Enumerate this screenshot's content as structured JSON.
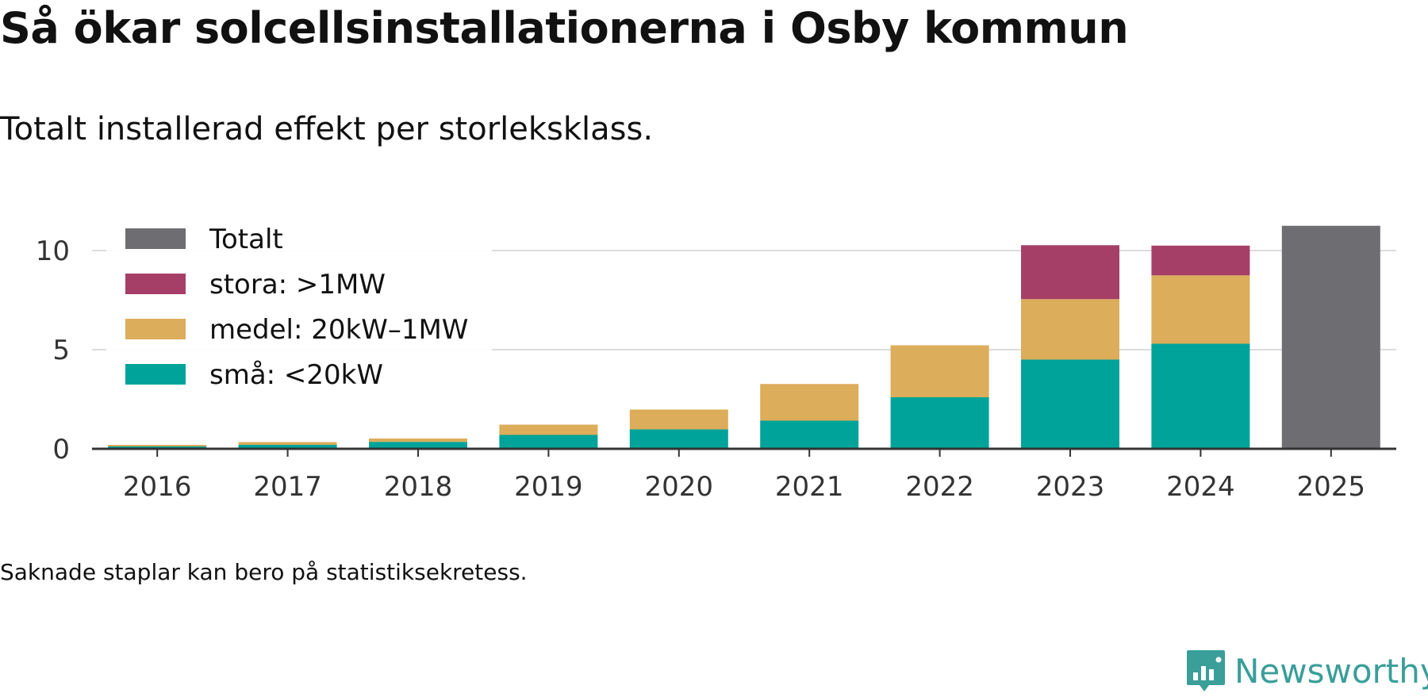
{
  "header": {
    "title": "Så ökar solcellsinstallationerna i Osby kommun",
    "subtitle": "Totalt installerad effekt per storleksklass."
  },
  "footnote": "Saknade staplar kan bero på statistiksekretess.",
  "brand": {
    "name": "Newsworthy",
    "icon": "newsworthy-logo-icon",
    "color": "#3a9e99"
  },
  "chart_data": {
    "type": "bar",
    "stacked": true,
    "categories": [
      "2016",
      "2017",
      "2018",
      "2019",
      "2020",
      "2021",
      "2022",
      "2023",
      "2024",
      "2025"
    ],
    "series": [
      {
        "name": "små: <20kW",
        "color": "#00a39a",
        "values": [
          0.12,
          0.2,
          0.35,
          0.7,
          0.98,
          1.42,
          2.6,
          4.5,
          5.3,
          null
        ]
      },
      {
        "name": "medel: 20kW–1MW",
        "color": "#dcad5a",
        "values": [
          0.08,
          0.14,
          0.17,
          0.52,
          1.0,
          1.85,
          2.62,
          3.05,
          3.45,
          null
        ]
      },
      {
        "name": "stora: >1MW",
        "color": "#a63f68",
        "values": [
          null,
          null,
          null,
          null,
          null,
          null,
          null,
          2.72,
          1.5,
          null
        ]
      },
      {
        "name": "Totalt",
        "color": "#6e6d72",
        "values": [
          null,
          null,
          null,
          null,
          null,
          null,
          null,
          null,
          null,
          11.25
        ]
      }
    ],
    "legend_order": [
      "Totalt",
      "stora: >1MW",
      "medel: 20kW–1MW",
      "små: <20kW"
    ],
    "yticks": [
      "0",
      "5",
      "10"
    ],
    "ylim": [
      0,
      12
    ],
    "grid": true,
    "legend_position": "top-left",
    "xlabel": "",
    "ylabel": ""
  }
}
